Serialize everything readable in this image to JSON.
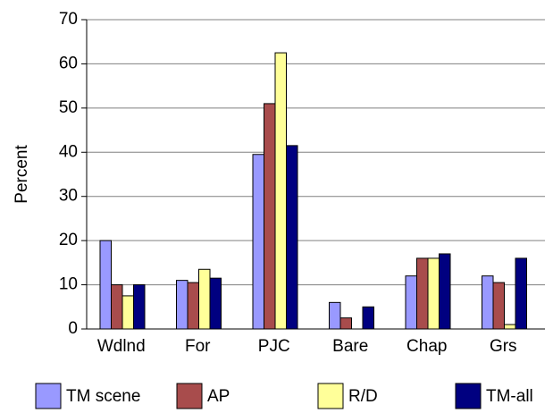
{
  "chart_data": {
    "type": "bar",
    "y_label": "Percent",
    "categories": [
      "Wdlnd",
      "For",
      "PJC",
      "Bare",
      "Chap",
      "Grs"
    ],
    "series": [
      {
        "name": "TM scene",
        "color": "#9999ff",
        "values": [
          20,
          11,
          39.5,
          6,
          12,
          12
        ]
      },
      {
        "name": "AP",
        "color": "#a84c4c",
        "values": [
          10,
          10.5,
          51,
          2.5,
          16,
          10.5
        ]
      },
      {
        "name": "R/D",
        "color": "#ffff99",
        "values": [
          7.5,
          13.5,
          62.5,
          0,
          16,
          1
        ]
      },
      {
        "name": "TM-all",
        "color": "#000080",
        "values": [
          10,
          11.5,
          41.5,
          5,
          17,
          16
        ]
      }
    ],
    "ylim": [
      0,
      70
    ],
    "yticks": [
      0,
      10,
      20,
      30,
      40,
      50,
      60,
      70
    ],
    "grid": true
  }
}
